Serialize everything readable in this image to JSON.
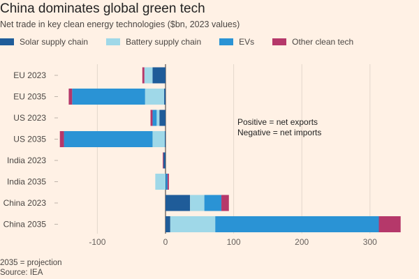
{
  "chart_data": {
    "type": "bar",
    "orientation": "horizontal",
    "stacked": true,
    "title": "China dominates global green tech",
    "subtitle": "Net trade in key clean energy technologies ($bn, 2023 values)",
    "categories": [
      "EU 2023",
      "EU 2035",
      "US 2023",
      "US 2035",
      "India 2023",
      "India 2035",
      "China 2023",
      "China 2035"
    ],
    "series": [
      {
        "name": "Solar supply chain",
        "color": "#1f5c99",
        "values": [
          -19,
          -2,
          -9,
          -1,
          -3,
          1,
          36,
          7
        ]
      },
      {
        "name": "Battery supply chain",
        "color": "#9fd8e8",
        "values": [
          -12,
          -28,
          -4,
          -18,
          0,
          -15,
          21,
          66
        ]
      },
      {
        "name": "EVs",
        "color": "#2a93d5",
        "values": [
          0,
          -107,
          -6,
          -130,
          0,
          2,
          25,
          240
        ]
      },
      {
        "name": "Other clean tech",
        "color": "#b5386a",
        "values": [
          -3,
          -5,
          -3,
          -6,
          -1,
          2,
          11,
          32
        ]
      }
    ],
    "xticks": [
      -100,
      0,
      100,
      200,
      300
    ],
    "xlim": [
      -160,
      350
    ],
    "xlabel": "",
    "ylabel": "",
    "grid": "vertical",
    "legend": "top",
    "annotation": [
      "Positive = net exports",
      "Negative = net imports"
    ]
  },
  "notes": {
    "projection": "2035 = projection",
    "source": "Source: IEA"
  }
}
